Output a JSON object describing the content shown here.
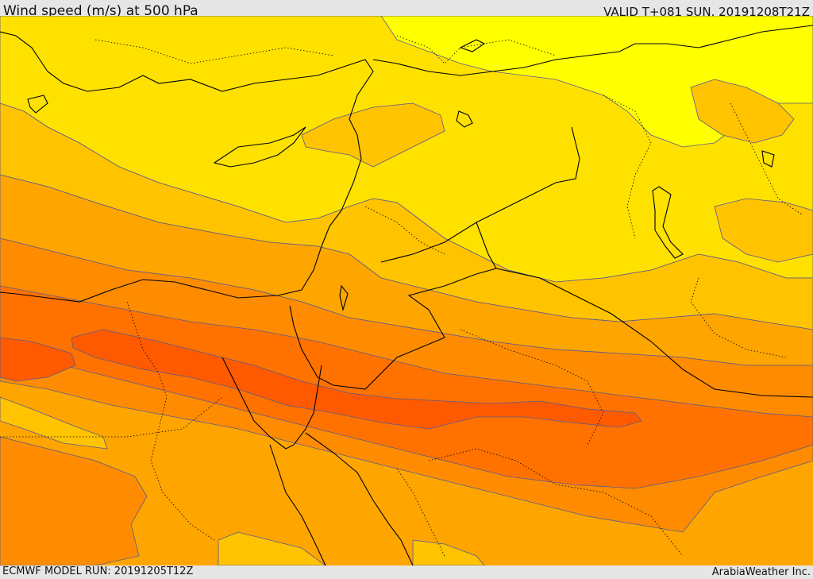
{
  "header": {
    "title": "Wind speed (m/s) at 500 hPa",
    "valid": "VALID T+081 SUN. 20191208T21Z"
  },
  "footer": {
    "model_run": "ECMWF MODEL RUN: 20191205T12Z",
    "credit": "ArabiaWeather Inc."
  },
  "colors": {
    "band_yellow_bright": "#ffff00",
    "band_yellow": "#ffe100",
    "band_gold": "#ffc300",
    "band_orange_light": "#ffa500",
    "band_orange": "#ff8c00",
    "band_orange_dark": "#ff7200",
    "band_red_orange": "#ff5a00",
    "contour_line": "#5a5a8c",
    "coast_line": "#000000"
  }
}
